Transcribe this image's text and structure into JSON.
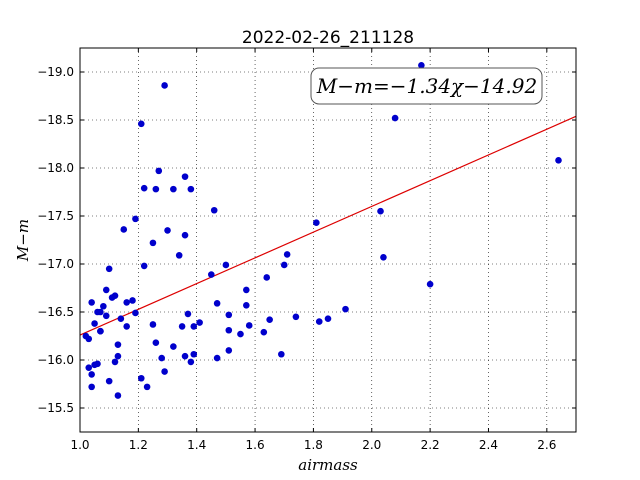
{
  "chart_data": {
    "type": "scatter",
    "title": "2022-02-26_211128",
    "xlabel": "airmass",
    "ylabel": "M−m",
    "xlim": [
      1.0,
      2.7
    ],
    "ylim": [
      -19.25,
      -15.25
    ],
    "y_inverted": true,
    "grid": true,
    "grid_style": "dotted",
    "x_ticks": [
      "1.0",
      "1.2",
      "1.4",
      "1.6",
      "1.8",
      "2.0",
      "2.2",
      "2.4",
      "2.6"
    ],
    "y_ticks": [
      "−15.5",
      "−16.0",
      "−16.5",
      "−17.0",
      "−17.5",
      "−18.0",
      "−18.5",
      "−19.0"
    ],
    "point_color": "#0000cc",
    "fit_color": "#dd0000",
    "fit": {
      "slope": -1.34,
      "intercept": -14.92
    },
    "annotation": "M−m=−1.34χ−14.92",
    "points": [
      [
        1.02,
        -16.25
      ],
      [
        1.03,
        -15.92
      ],
      [
        1.03,
        -16.22
      ],
      [
        1.04,
        -16.6
      ],
      [
        1.04,
        -15.72
      ],
      [
        1.04,
        -15.85
      ],
      [
        1.05,
        -16.38
      ],
      [
        1.05,
        -15.95
      ],
      [
        1.06,
        -16.5
      ],
      [
        1.06,
        -15.96
      ],
      [
        1.07,
        -16.3
      ],
      [
        1.07,
        -16.3
      ],
      [
        1.07,
        -16.5
      ],
      [
        1.08,
        -16.56
      ],
      [
        1.09,
        -16.73
      ],
      [
        1.09,
        -16.46
      ],
      [
        1.1,
        -16.95
      ],
      [
        1.1,
        -15.78
      ],
      [
        1.11,
        -16.65
      ],
      [
        1.12,
        -16.67
      ],
      [
        1.12,
        -15.98
      ],
      [
        1.13,
        -15.63
      ],
      [
        1.13,
        -16.04
      ],
      [
        1.13,
        -16.16
      ],
      [
        1.14,
        -16.43
      ],
      [
        1.15,
        -17.36
      ],
      [
        1.16,
        -16.6
      ],
      [
        1.16,
        -16.35
      ],
      [
        1.18,
        -16.62
      ],
      [
        1.19,
        -16.49
      ],
      [
        1.19,
        -17.47
      ],
      [
        1.21,
        -18.46
      ],
      [
        1.21,
        -15.81
      ],
      [
        1.22,
        -16.98
      ],
      [
        1.22,
        -17.79
      ],
      [
        1.23,
        -15.72
      ],
      [
        1.25,
        -16.37
      ],
      [
        1.25,
        -17.22
      ],
      [
        1.26,
        -16.18
      ],
      [
        1.26,
        -17.78
      ],
      [
        1.27,
        -17.97
      ],
      [
        1.28,
        -16.02
      ],
      [
        1.29,
        -18.86
      ],
      [
        1.29,
        -15.88
      ],
      [
        1.3,
        -17.35
      ],
      [
        1.32,
        -17.78
      ],
      [
        1.32,
        -16.14
      ],
      [
        1.34,
        -17.09
      ],
      [
        1.35,
        -16.35
      ],
      [
        1.36,
        -17.91
      ],
      [
        1.36,
        -17.3
      ],
      [
        1.36,
        -16.04
      ],
      [
        1.37,
        -16.48
      ],
      [
        1.38,
        -17.78
      ],
      [
        1.38,
        -15.98
      ],
      [
        1.39,
        -16.06
      ],
      [
        1.39,
        -16.35
      ],
      [
        1.41,
        -16.39
      ],
      [
        1.45,
        -16.89
      ],
      [
        1.46,
        -17.56
      ],
      [
        1.47,
        -16.02
      ],
      [
        1.47,
        -16.59
      ],
      [
        1.5,
        -16.99
      ],
      [
        1.51,
        -16.47
      ],
      [
        1.51,
        -16.31
      ],
      [
        1.51,
        -16.1
      ],
      [
        1.55,
        -16.27
      ],
      [
        1.57,
        -16.57
      ],
      [
        1.57,
        -16.73
      ],
      [
        1.58,
        -16.36
      ],
      [
        1.63,
        -16.29
      ],
      [
        1.64,
        -16.86
      ],
      [
        1.65,
        -16.42
      ],
      [
        1.69,
        -16.06
      ],
      [
        1.7,
        -16.99
      ],
      [
        1.71,
        -17.1
      ],
      [
        1.74,
        -16.45
      ],
      [
        1.81,
        -17.43
      ],
      [
        1.82,
        -16.4
      ],
      [
        1.85,
        -16.43
      ],
      [
        1.91,
        -16.53
      ],
      [
        2.03,
        -17.55
      ],
      [
        2.04,
        -17.07
      ],
      [
        2.08,
        -18.52
      ],
      [
        2.17,
        -19.07
      ],
      [
        2.2,
        -16.79
      ],
      [
        2.64,
        -18.08
      ]
    ]
  }
}
